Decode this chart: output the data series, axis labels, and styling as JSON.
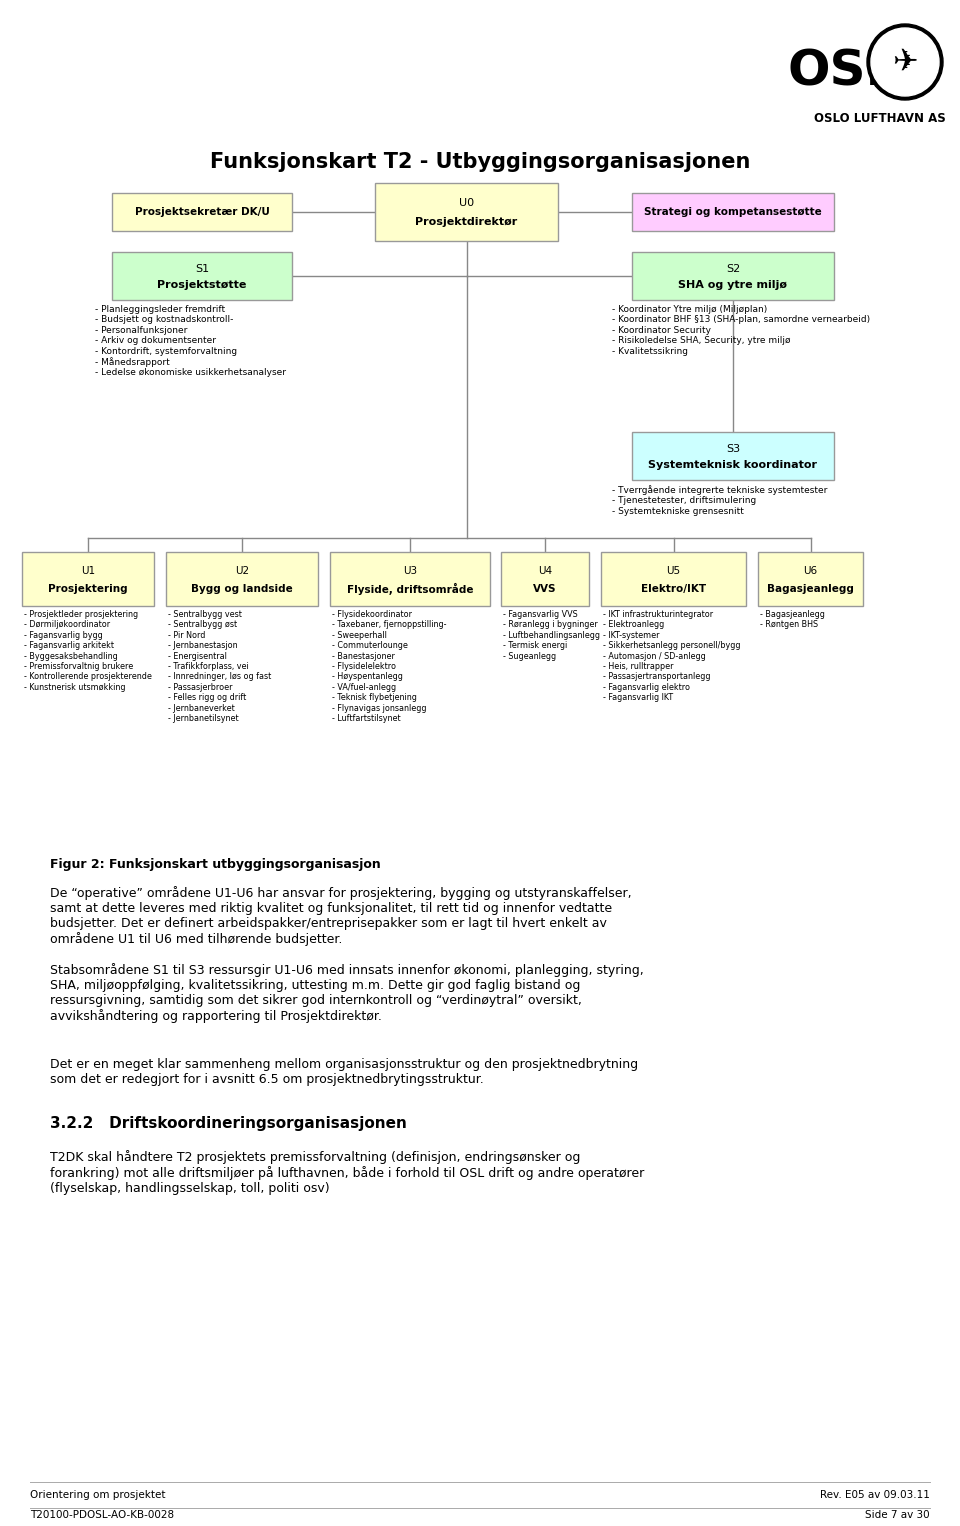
{
  "title": "Funksjonskart T2 - Utbyggingsorganisasjonen",
  "bg_color": "#ffffff",
  "boxes": {
    "U0": {
      "color": "#ffffcc",
      "border": "#999999"
    },
    "Sekr": {
      "color": "#ffffcc",
      "border": "#999999"
    },
    "Strat": {
      "color": "#ffccff",
      "border": "#999999"
    },
    "S1": {
      "color": "#ccffcc",
      "border": "#999999"
    },
    "S2": {
      "color": "#ccffcc",
      "border": "#999999"
    },
    "S3": {
      "color": "#ccffff",
      "border": "#999999"
    },
    "U": {
      "color": "#ffffcc",
      "border": "#999999"
    }
  },
  "S1_bullets": "- Planleggingsleder fremdrift\n- Budsjett og kostnadskontroll-\n- Personalfunksjoner\n- Arkiv og dokumentsenter\n- Kontordrift, systemforvaltning\n- Månedsrapport\n- Ledelse økonomiske usikkerhetsanalyser",
  "S2_bullets": "- Koordinator Ytre miljø (Miljøplan)\n- Koordinator BHF §13 (SHA-plan, samordne vernearbeid)\n- Koordinator Security\n- Risikoledelse SHA, Security, ytre miljø\n- Kvalitetssikring",
  "S3_bullets": "- Tverrgående integrerte tekniske systemtester\n- Tjenestetester, driftsimulering\n- Systemtekniske grensesnitt",
  "U1_bullets": "- Prosjektleder prosjektering\n- Dørmiljøkoordinator\n- Fagansvarlig bygg\n- Fagansvarlig arkitekt\n- Byggesaksbehandling\n- Premissforvaltnig brukere\n- Kontrollerende prosjekterende\n- Kunstnerisk utsmøkking",
  "U2_bullets": "- Sentralbygg vest\n- Sentralbygg øst\n- Pir Nord\n- Jernbanestasjon\n- Energisentral\n- Trafikkforplass, vei\n- Innredninger, løs og fast\n- Passasjerbroer\n- Felles rigg og drift\n- Jernbaneverket\n- Jernbanetilsynet",
  "U3_bullets": "- Flysidekoordinator\n- Taxebaner, fjernoppstilling-\n- Sweeperhall\n- Commuterlounge\n- Banestasjoner\n- Flysidelelektro\n- Høyspentanlegg\n- VA/fuel-anlegg\n- Teknisk flybetjening\n- Flynavigas jonsanlegg\n- Luftfartstilsynet",
  "U4_bullets": "- Fagansvarlig VVS\n- Røranlegg i bygninger\n- Luftbehandlingsanlegg\n- Termisk energi\n- Sugeanlegg",
  "U5_bullets": "- IKT infrastrukturintegrator\n- Elektroanlegg\n- IKT-systemer\n- Sikkerhetsanlegg personell/bygg\n- Automasjon / SD-anlegg\n- Heis, rulltrapper\n- Passasjertransportanlegg\n- Fagansvarlig elektro\n- Fagansvarlig IKT",
  "U6_bullets": "- Bagasjeanlegg\n- Røntgen BHS",
  "body_fig_caption": "Figur 2: Funksjonskart utbyggingsorganisasjon",
  "body_text_2": "De “operative” områdene U1-U6 har ansvar for prosjektering, bygging og utstyranskaffelser,\nsamt at dette leveres med riktig kvalitet og funksjonalitet, til rett tid og innenfor vedtatte\nbudsjetter. Det er definert arbeidspakker/entreprisepakker som er lagt til hvert enkelt av\nområdene U1 til U6 med tilhørende budsjetter.",
  "body_text_3": "Stabsområdene S1 til S3 ressursgir U1-U6 med innsats innenfor økonomi, planlegging, styring,\nSHA, miljøoppfølging, kvalitetssikring, uttesting m.m. Dette gir god faglig bistand og\nressursgivning, samtidig som det sikrer god internkontroll og “verdinøytral” oversikt,\navvikshåndtering og rapportering til Prosjektdirektør.",
  "body_text_4": "Det er en meget klar sammenheng mellom organisasjonsstruktur og den prosjektnedbrytning\nsom det er redegjort for i avsnitt 6.5 om prosjektnedbrytingsstruktur.",
  "section_title": "3.2.2   Driftskoordineringsorganisasjonen",
  "body_text_5": "T2DK skal håndtere T2 prosjektets premissforvaltning (definisjon, endringsønsker og\nforankring) mot alle driftsmiljøer på lufthavnen, både i forhold til OSL drift og andre operatører\n(flyselskap, handlingsselskap, toll, politi osv)",
  "footer_left": "Orientering om prosjektet",
  "footer_right": "Rev. E05 av 09.03.11",
  "footer_left2": "T20100-PDOSL-AO-KB-0028",
  "footer_right2": "Side 7 av 30"
}
